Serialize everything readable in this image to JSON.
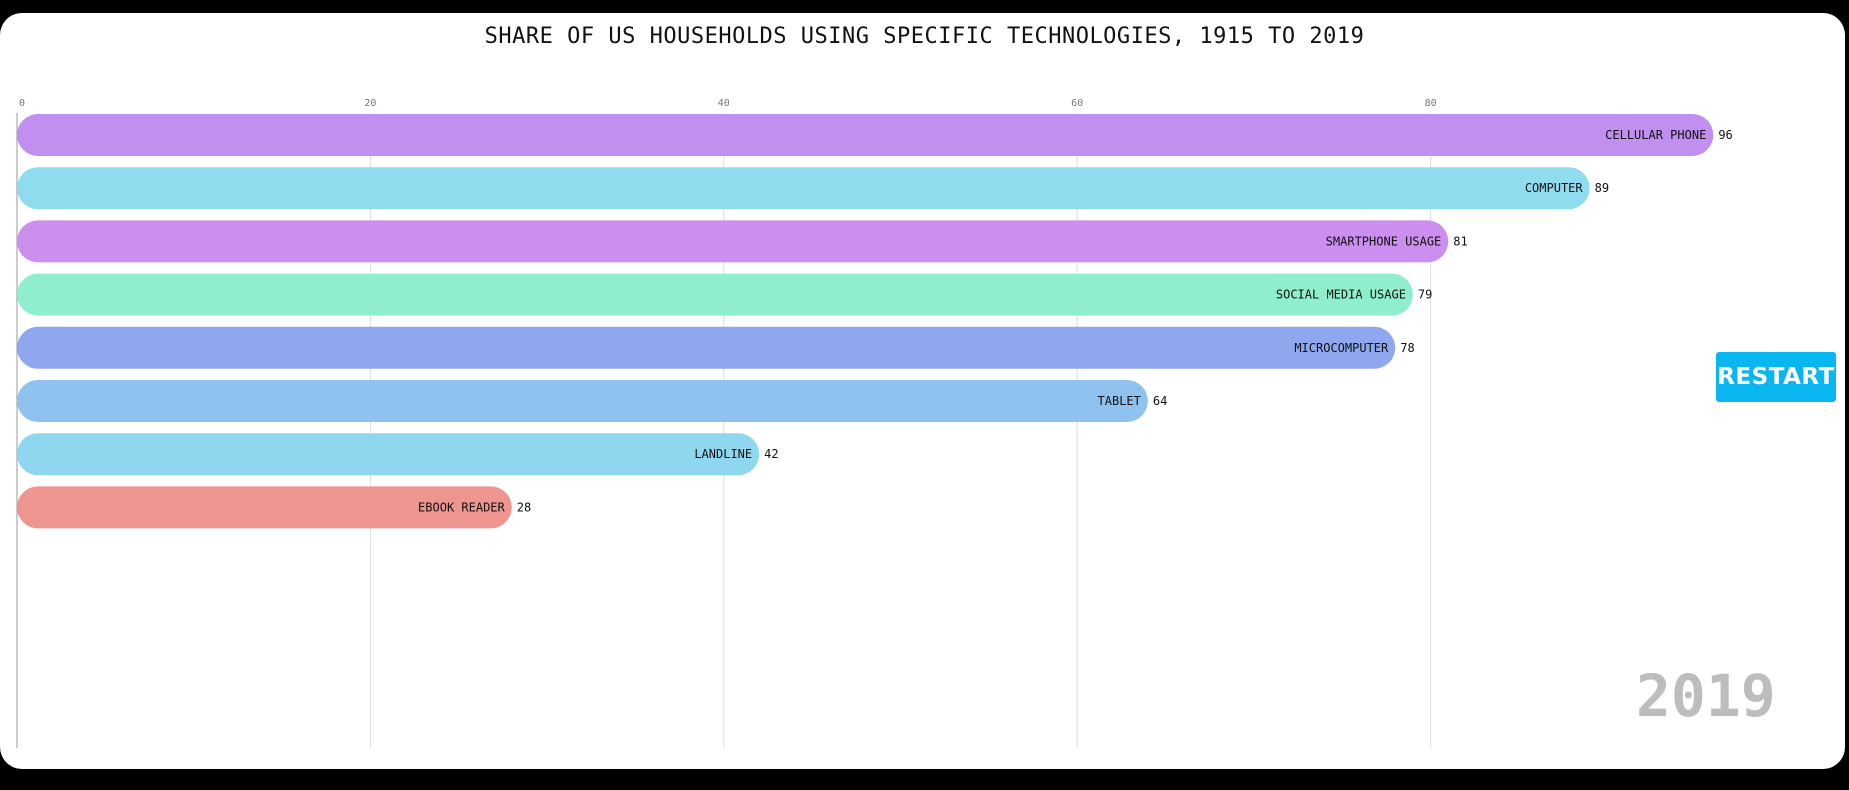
{
  "chart_data": {
    "type": "bar",
    "orientation": "horizontal",
    "title": "SHARE OF US HOUSEHOLDS USING SPECIFIC TECHNOLOGIES, 1915 TO 2019",
    "categories": [
      "CELLULAR PHONE",
      "COMPUTER",
      "SMARTPHONE USAGE",
      "SOCIAL MEDIA USAGE",
      "MICROCOMPUTER",
      "TABLET",
      "LANDLINE",
      "EBOOK READER"
    ],
    "values": [
      96,
      89,
      81,
      79,
      78,
      64,
      42,
      28
    ],
    "colors": [
      "#c08ff0",
      "#8fdcef",
      "#cc8ff0",
      "#8fefcc",
      "#8fa7ef",
      "#8fc2ef",
      "#8fd6ef",
      "#ef958f"
    ],
    "x_ticks": [
      0,
      20,
      40,
      60,
      80
    ],
    "xlim": [
      0,
      100
    ],
    "grid": true,
    "current_year": "2019"
  },
  "controls": {
    "restart_label": "RESTART"
  }
}
